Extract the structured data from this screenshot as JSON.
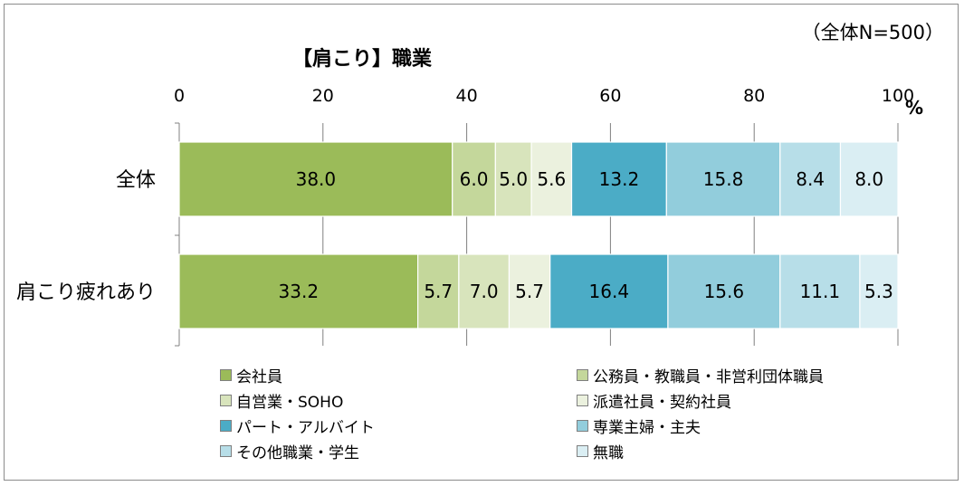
{
  "note": "（全体N=500）",
  "chart_data": {
    "type": "bar",
    "orientation": "horizontal",
    "stacked": true,
    "title": "【肩こり】職業",
    "unit_label": "%",
    "xlim": [
      0,
      100
    ],
    "x_ticks": [
      "0",
      "20",
      "40",
      "60",
      "80",
      "100"
    ],
    "grid": true,
    "legend_position": "bottom",
    "categories": [
      "全体",
      "肩こり疲れあり"
    ],
    "series": [
      {
        "name": "会社員",
        "color": "#9bbb59",
        "values": [
          38.0,
          33.2
        ],
        "labels": [
          "38.0",
          "33.2"
        ]
      },
      {
        "name": "公務員・教職員・非営利団体職員",
        "color": "#c4d79b",
        "values": [
          6.0,
          5.7
        ],
        "labels": [
          "6.0",
          "5.7"
        ]
      },
      {
        "name": "自営業・SOHO",
        "color": "#d8e4bc",
        "values": [
          5.0,
          7.0
        ],
        "labels": [
          "5.0",
          "7.0"
        ]
      },
      {
        "name": "派遣社員・契約社員",
        "color": "#ebf1de",
        "values": [
          5.6,
          5.7
        ],
        "labels": [
          "5.6",
          "5.7"
        ]
      },
      {
        "name": "パート・アルバイト",
        "color": "#4bacc6",
        "values": [
          13.2,
          16.4
        ],
        "labels": [
          "13.2",
          "16.4"
        ]
      },
      {
        "name": "専業主婦・主夫",
        "color": "#92cddc",
        "values": [
          15.8,
          15.6
        ],
        "labels": [
          "15.8",
          "15.6"
        ]
      },
      {
        "name": "その他職業・学生",
        "color": "#b7dee8",
        "values": [
          8.4,
          11.1
        ],
        "labels": [
          "8.4",
          "11.1"
        ]
      },
      {
        "name": "無職",
        "color": "#daeef3",
        "values": [
          8.0,
          5.3
        ],
        "labels": [
          "8.0",
          "5.3"
        ]
      }
    ]
  }
}
